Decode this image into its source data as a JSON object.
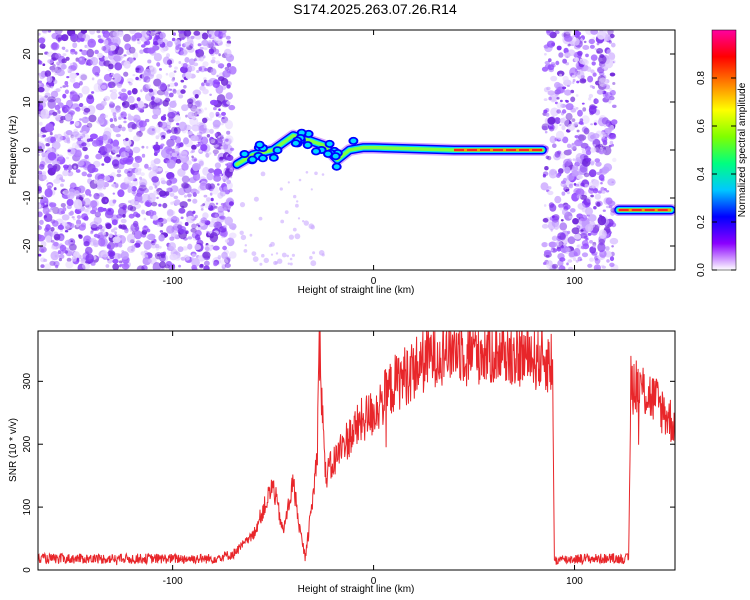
{
  "title": "S174.2025.263.07.26.R14",
  "colors": {
    "snr_line": "#e8262a",
    "background": "#ffffff",
    "axis": "#000000"
  },
  "chart_data": [
    {
      "type": "heatmap",
      "title": "",
      "xlabel": "Height of straight line (km)",
      "ylabel": "Frequency (Hz)",
      "xlim": [
        -167,
        150
      ],
      "ylim": [
        -25,
        25
      ],
      "xticks": [
        -100,
        0,
        100
      ],
      "yticks": [
        -20,
        -10,
        0,
        10,
        20
      ],
      "colorbar": {
        "label": "Normalized spectral amplitude",
        "range": [
          0,
          1
        ],
        "ticks": [
          "0.0",
          "0.2",
          "0.4",
          "0.6",
          "0.8"
        ],
        "colormap": [
          "#ffffff",
          "#8a00ff",
          "#0000ff",
          "#00c8ff",
          "#00ff80",
          "#80ff00",
          "#ffff00",
          "#ff8000",
          "#ff0000",
          "#ff00a0"
        ]
      },
      "noise_regions_km": [
        [
          -167,
          -70
        ],
        [
          85,
          120
        ]
      ],
      "signal_track": [
        {
          "x": -68,
          "y": -3
        },
        {
          "x": -60,
          "y": -1
        },
        {
          "x": -50,
          "y": 0
        },
        {
          "x": -40,
          "y": 3
        },
        {
          "x": -32,
          "y": 2
        },
        {
          "x": -25,
          "y": 1
        },
        {
          "x": -18,
          "y": -2
        },
        {
          "x": -12,
          "y": 0
        },
        {
          "x": -5,
          "y": 0.5
        },
        {
          "x": 0,
          "y": 0.5
        },
        {
          "x": 40,
          "y": 0
        },
        {
          "x": 84,
          "y": 0
        },
        {
          "x": 122,
          "y": -12.5
        },
        {
          "x": 148,
          "y": -12.5
        }
      ]
    },
    {
      "type": "line",
      "title": "",
      "xlabel": "Height of straight line (km)",
      "ylabel": "SNR (10 * v/v)",
      "xlim": [
        -167,
        150
      ],
      "ylim": [
        0,
        380
      ],
      "xticks": [
        -100,
        0,
        100
      ],
      "yticks": [
        0,
        100,
        200,
        300
      ],
      "series": [
        {
          "name": "SNR",
          "x": [
            -167,
            -80,
            -70,
            -60,
            -55,
            -50,
            -45,
            -40,
            -37,
            -34,
            -30,
            -28,
            -27,
            -24,
            -20,
            -15,
            -10,
            -5,
            0,
            10,
            20,
            30,
            40,
            50,
            60,
            70,
            80,
            85,
            89,
            90,
            100,
            110,
            120,
            127,
            128,
            130,
            140,
            150
          ],
          "values": [
            18,
            18,
            25,
            55,
            95,
            135,
            60,
            140,
            70,
            20,
            120,
            190,
            370,
            150,
            170,
            200,
            220,
            240,
            250,
            295,
            320,
            345,
            355,
            350,
            348,
            345,
            338,
            335,
            330,
            15,
            18,
            18,
            18,
            18,
            305,
            300,
            270,
            230
          ]
        }
      ]
    }
  ]
}
